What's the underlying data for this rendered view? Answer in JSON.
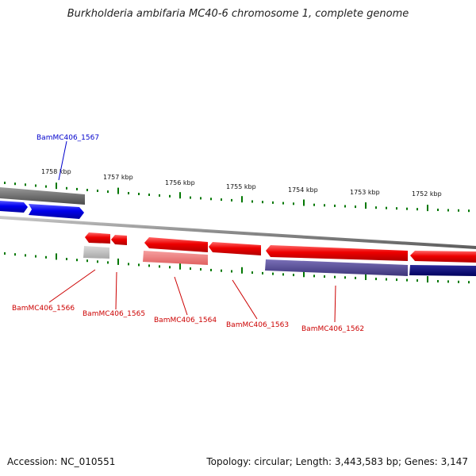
{
  "title": "Burkholderia ambifaria MC40-6 chromosome 1, complete genome",
  "footer": {
    "accession": "Accession: NC_010551",
    "summary": "Topology: circular; Length: 3,443,583 bp; Genes: 3,147"
  },
  "colors": {
    "forward_gene": "#0000ee",
    "reverse_gene": "#ee0000",
    "tick": "#006600",
    "backbone": "#888888"
  },
  "scale_labels": [
    "1758 kbp",
    "1757 kbp",
    "1756 kbp",
    "1755 kbp",
    "1754 kbp",
    "1753 kbp",
    "1752 kbp"
  ],
  "genes": [
    {
      "id": "BamMC406_1567",
      "strand": "forward"
    },
    {
      "id": "BamMC406_1566",
      "strand": "reverse"
    },
    {
      "id": "BamMC406_1565",
      "strand": "reverse"
    },
    {
      "id": "BamMC406_1564",
      "strand": "reverse"
    },
    {
      "id": "BamMC406_1563",
      "strand": "reverse"
    },
    {
      "id": "BamMC406_1562",
      "strand": "reverse"
    }
  ]
}
